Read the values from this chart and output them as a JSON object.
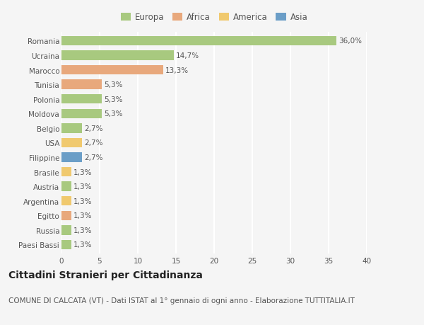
{
  "countries": [
    "Romania",
    "Ucraina",
    "Marocco",
    "Tunisia",
    "Polonia",
    "Moldova",
    "Belgio",
    "USA",
    "Filippine",
    "Brasile",
    "Austria",
    "Argentina",
    "Egitto",
    "Russia",
    "Paesi Bassi"
  ],
  "values": [
    36.0,
    14.7,
    13.3,
    5.3,
    5.3,
    5.3,
    2.7,
    2.7,
    2.7,
    1.3,
    1.3,
    1.3,
    1.3,
    1.3,
    1.3
  ],
  "labels": [
    "36,0%",
    "14,7%",
    "13,3%",
    "5,3%",
    "5,3%",
    "5,3%",
    "2,7%",
    "2,7%",
    "2,7%",
    "1,3%",
    "1,3%",
    "1,3%",
    "1,3%",
    "1,3%",
    "1,3%"
  ],
  "continents": [
    "Europa",
    "Europa",
    "Africa",
    "Africa",
    "Europa",
    "Europa",
    "Europa",
    "America",
    "Asia",
    "America",
    "Europa",
    "America",
    "Africa",
    "Europa",
    "Europa"
  ],
  "continent_colors": {
    "Europa": "#a8c97f",
    "Africa": "#e8a87c",
    "America": "#f0c96e",
    "Asia": "#6b9ec7"
  },
  "legend_order": [
    "Europa",
    "Africa",
    "America",
    "Asia"
  ],
  "title": "Cittadini Stranieri per Cittadinanza",
  "subtitle": "COMUNE DI CALCATA (VT) - Dati ISTAT al 1° gennaio di ogni anno - Elaborazione TUTTITALIA.IT",
  "xlim": [
    0,
    40
  ],
  "xticks": [
    0,
    5,
    10,
    15,
    20,
    25,
    30,
    35,
    40
  ],
  "background_color": "#f5f5f5",
  "grid_color": "#ffffff",
  "title_fontsize": 10,
  "subtitle_fontsize": 7.5,
  "label_fontsize": 7.5,
  "tick_fontsize": 7.5,
  "legend_fontsize": 8.5,
  "bar_height": 0.65
}
